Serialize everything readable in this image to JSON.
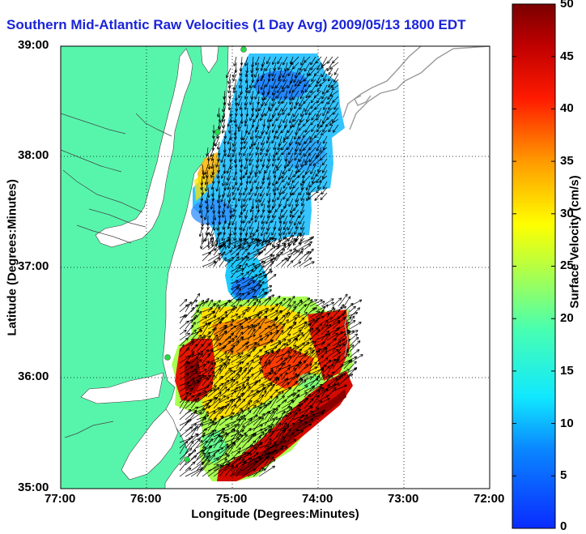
{
  "map": {
    "title": "Southern Mid-Atlantic Raw Velocities (1 Day Avg) 2009/05/13 1800 EDT",
    "x_label": "Longitude (Degrees:Minutes)",
    "y_label": "Latitude (Degrees:Minutes)",
    "x_ticks": [
      "77:00",
      "76:00",
      "75:00",
      "74:00",
      "73:00",
      "72:00"
    ],
    "y_ticks": [
      "39:00",
      "38:00",
      "37:00",
      "36:00",
      "35:00"
    ],
    "land_color": "#57f5ac",
    "water_color": "#ffffff",
    "gridlines": "dotted"
  },
  "colorbar": {
    "label": "Surface Velocity (cm/s)",
    "ticks": [
      "50",
      "45",
      "40",
      "35",
      "30",
      "25",
      "20",
      "15",
      "10",
      "5",
      "0"
    ],
    "min": 0,
    "max": 50,
    "colormap": "jet"
  }
}
